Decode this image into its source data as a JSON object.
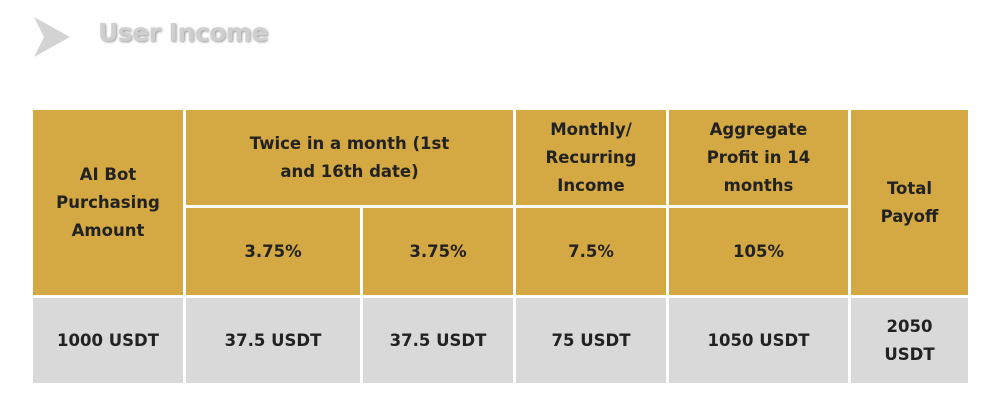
{
  "title": "User Income",
  "table": {
    "header": {
      "purchase": "AI Bot Purchasing Amount",
      "twice": "Twice in a month (1st and 16th date)",
      "monthly": "Monthly/ Recurring Income",
      "aggregate": "Aggregate Profit in 14 months",
      "total": "Total Payoff",
      "rates": [
        "3.75%",
        "3.75%",
        "7.5%",
        "105%"
      ]
    },
    "rows": [
      [
        "1000 USDT",
        "37.5 USDT",
        "37.5 USDT",
        "75 USDT",
        "1050 USDT",
        "2050 USDT"
      ]
    ]
  }
}
